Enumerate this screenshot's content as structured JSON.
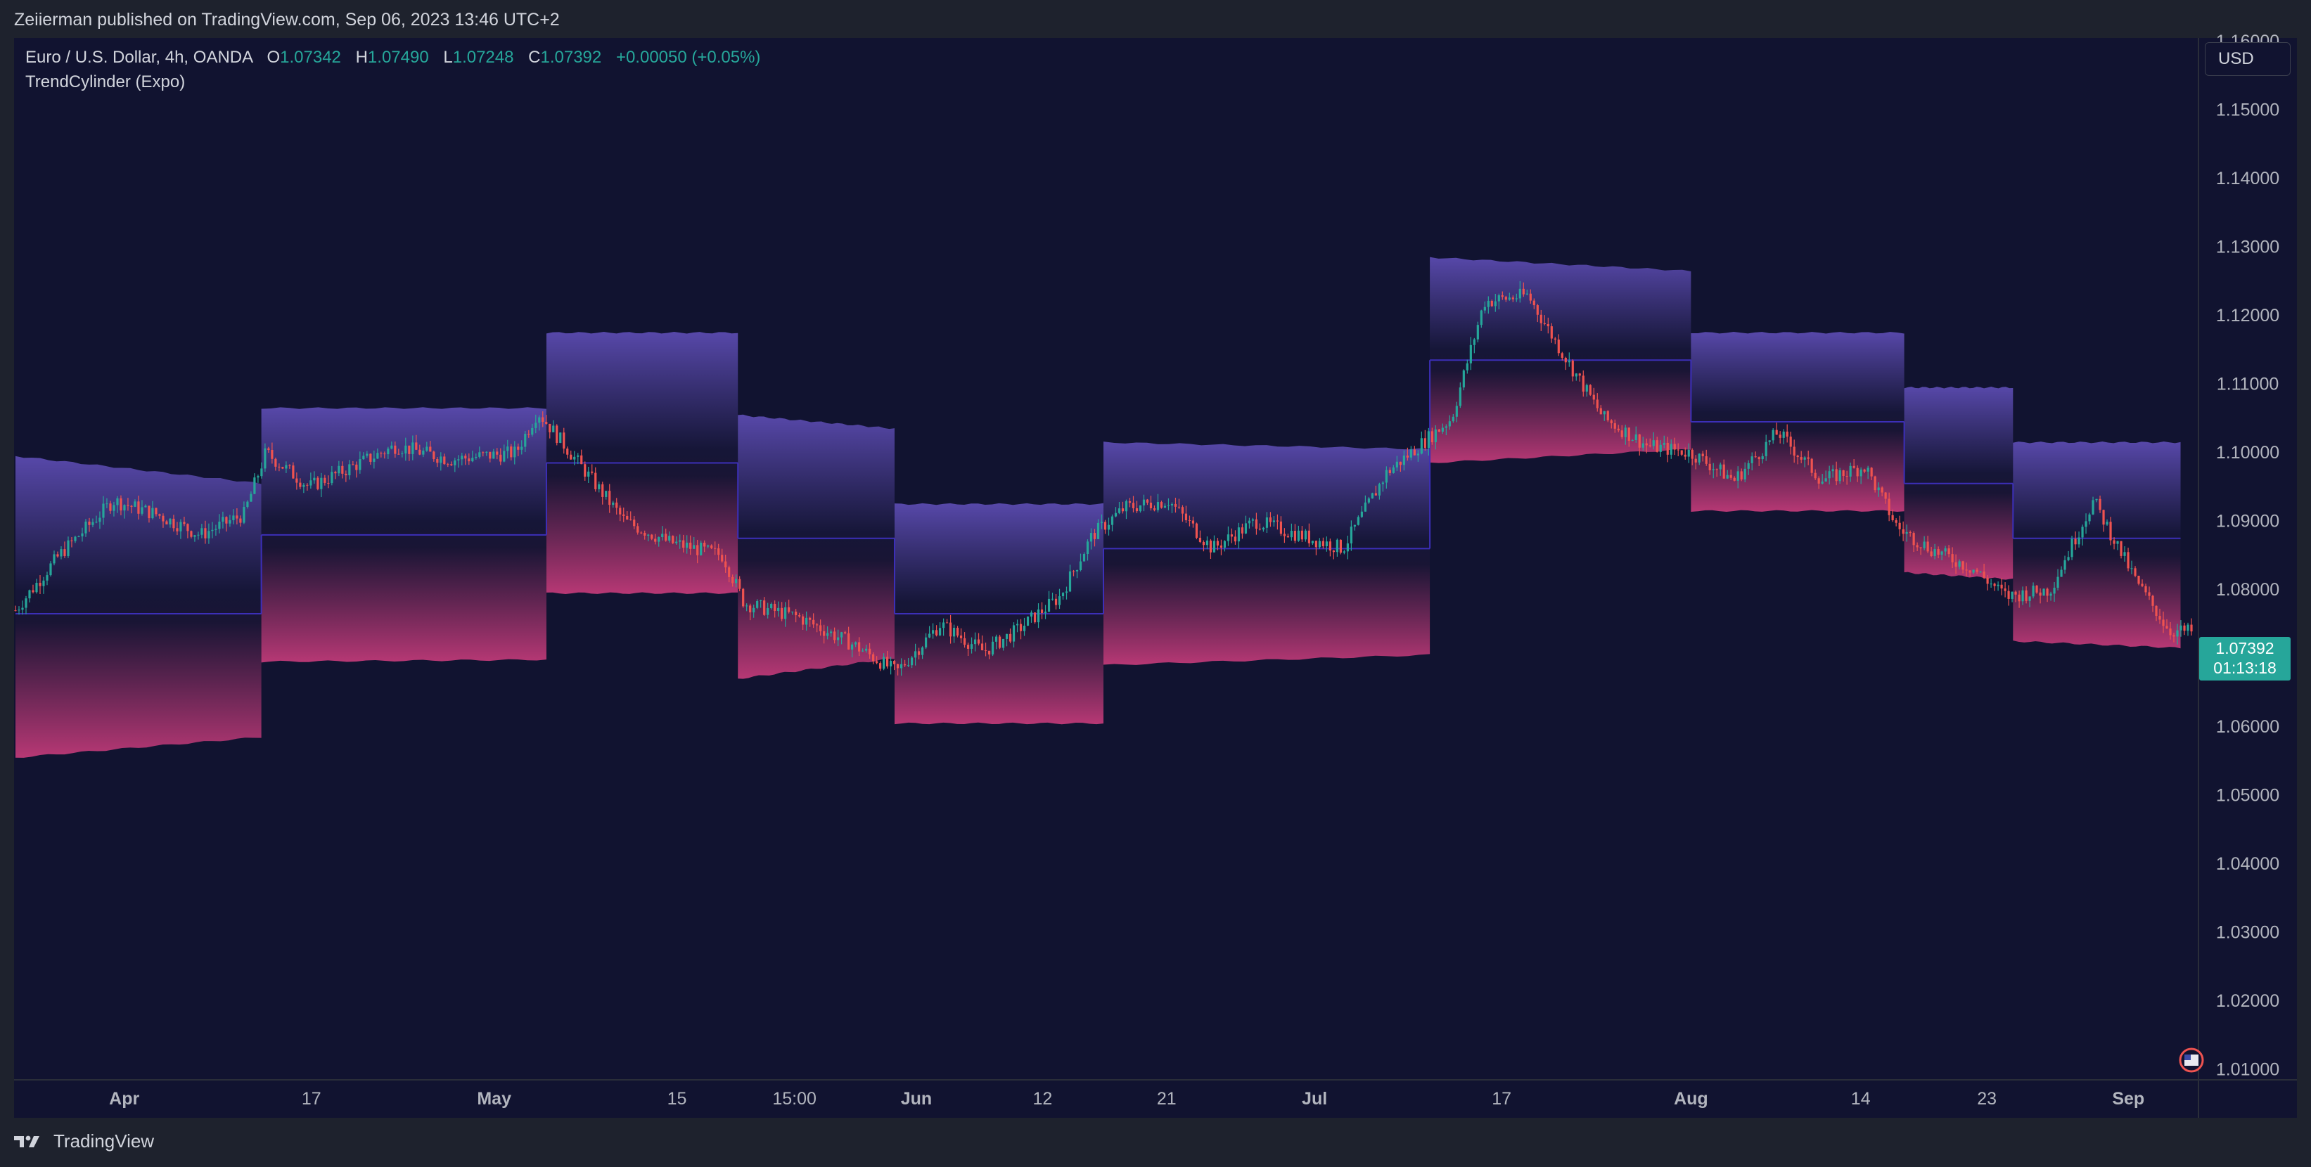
{
  "header": {
    "published": "Zeiierman published on TradingView.com, Sep 06, 2023 13:46 UTC+2"
  },
  "legend": {
    "symbol": "Euro / U.S. Dollar, 4h, OANDA",
    "open_label": "O",
    "open": "1.07342",
    "high_label": "H",
    "high": "1.07490",
    "low_label": "L",
    "low": "1.07248",
    "close_label": "C",
    "close": "1.07392",
    "change": "+0.00050 (+0.05%)",
    "indicator": "TrendCylinder (Expo)"
  },
  "currency_button": "USD",
  "price_badge": {
    "price": "1.07392",
    "countdown": "01:13:18"
  },
  "footer": {
    "brand": "TradingView"
  },
  "colors": {
    "background": "#111330",
    "up": "#26a69a",
    "down": "#ef5350",
    "band_top": "#5b4bb0",
    "band_bottom": "#c03a78",
    "midline": "#3c2fb8",
    "badge": "#26a69a"
  },
  "chart_data": {
    "type": "candlestick",
    "yaxis": {
      "ticks": [
        "1.16000",
        "1.15000",
        "1.14000",
        "1.13000",
        "1.12000",
        "1.11000",
        "1.10000",
        "1.09000",
        "1.08000",
        "1.07000",
        "1.06000",
        "1.05000",
        "1.04000",
        "1.03000",
        "1.02000",
        "1.01000"
      ],
      "ylim": [
        1.0085,
        1.1605
      ]
    },
    "xaxis": {
      "ticks": [
        {
          "label": "Apr",
          "t": 0.05,
          "bold": true
        },
        {
          "label": "17",
          "t": 0.136,
          "bold": false
        },
        {
          "label": "May",
          "t": 0.22,
          "bold": true
        },
        {
          "label": "15",
          "t": 0.304,
          "bold": false
        },
        {
          "label": "15:00",
          "t": 0.358,
          "bold": false
        },
        {
          "label": "Jun",
          "t": 0.414,
          "bold": true
        },
        {
          "label": "12",
          "t": 0.472,
          "bold": false
        },
        {
          "label": "21",
          "t": 0.529,
          "bold": false
        },
        {
          "label": "Jul",
          "t": 0.597,
          "bold": true
        },
        {
          "label": "17",
          "t": 0.683,
          "bold": false
        },
        {
          "label": "Aug",
          "t": 0.77,
          "bold": true
        },
        {
          "label": "14",
          "t": 0.848,
          "bold": false
        },
        {
          "label": "23",
          "t": 0.906,
          "bold": false
        },
        {
          "label": "Sep",
          "t": 0.971,
          "bold": true
        }
      ]
    },
    "price_path": [
      [
        0,
        1.077
      ],
      [
        0.02,
        1.085
      ],
      [
        0.045,
        1.093
      ],
      [
        0.065,
        1.091
      ],
      [
        0.085,
        1.088
      ],
      [
        0.105,
        1.091
      ],
      [
        0.115,
        1.1
      ],
      [
        0.135,
        1.095
      ],
      [
        0.155,
        1.098
      ],
      [
        0.175,
        1.101
      ],
      [
        0.2,
        1.099
      ],
      [
        0.23,
        1.1
      ],
      [
        0.24,
        1.106
      ],
      [
        0.26,
        1.098
      ],
      [
        0.28,
        1.09
      ],
      [
        0.3,
        1.087
      ],
      [
        0.325,
        1.085
      ],
      [
        0.335,
        1.078
      ],
      [
        0.36,
        1.076
      ],
      [
        0.385,
        1.072
      ],
      [
        0.405,
        1.068
      ],
      [
        0.425,
        1.075
      ],
      [
        0.445,
        1.071
      ],
      [
        0.46,
        1.074
      ],
      [
        0.48,
        1.079
      ],
      [
        0.495,
        1.088
      ],
      [
        0.51,
        1.092
      ],
      [
        0.53,
        1.093
      ],
      [
        0.55,
        1.086
      ],
      [
        0.57,
        1.09
      ],
      [
        0.59,
        1.088
      ],
      [
        0.61,
        1.086
      ],
      [
        0.63,
        1.097
      ],
      [
        0.66,
        1.105
      ],
      [
        0.675,
        1.122
      ],
      [
        0.695,
        1.123
      ],
      [
        0.71,
        1.115
      ],
      [
        0.73,
        1.105
      ],
      [
        0.75,
        1.101
      ],
      [
        0.77,
        1.1
      ],
      [
        0.79,
        1.096
      ],
      [
        0.81,
        1.103
      ],
      [
        0.83,
        1.096
      ],
      [
        0.85,
        1.098
      ],
      [
        0.865,
        1.089
      ],
      [
        0.88,
        1.086
      ],
      [
        0.9,
        1.083
      ],
      [
        0.915,
        1.079
      ],
      [
        0.935,
        1.08
      ],
      [
        0.955,
        1.093
      ],
      [
        0.975,
        1.081
      ],
      [
        0.99,
        1.074
      ],
      [
        1.0,
        1.0739
      ]
    ],
    "trend_cylinder_segments": [
      {
        "t0": 0.0,
        "t1": 0.113,
        "top0": 1.0995,
        "top1": 1.0955,
        "mid": 1.0765,
        "bot0": 1.0555,
        "bot1": 1.0585
      },
      {
        "t0": 0.113,
        "t1": 0.244,
        "top0": 1.1065,
        "top1": 1.1065,
        "mid": 1.088,
        "bot0": 1.0695,
        "bot1": 1.0698
      },
      {
        "t0": 0.244,
        "t1": 0.332,
        "top0": 1.1175,
        "top1": 1.1175,
        "mid": 1.0985,
        "bot0": 1.0795,
        "bot1": 1.0795
      },
      {
        "t0": 0.332,
        "t1": 0.404,
        "top0": 1.1055,
        "top1": 1.1035,
        "mid": 1.0875,
        "bot0": 1.067,
        "bot1": 1.07
      },
      {
        "t0": 0.404,
        "t1": 0.5,
        "top0": 1.0925,
        "top1": 1.0925,
        "mid": 1.0765,
        "bot0": 1.0605,
        "bot1": 1.0605
      },
      {
        "t0": 0.5,
        "t1": 0.65,
        "top0": 1.1015,
        "top1": 1.1005,
        "mid": 1.086,
        "bot0": 1.069,
        "bot1": 1.0705
      },
      {
        "t0": 0.65,
        "t1": 0.77,
        "top0": 1.1285,
        "top1": 1.1265,
        "mid": 1.1135,
        "bot0": 1.0985,
        "bot1": 1.1005
      },
      {
        "t0": 0.77,
        "t1": 0.868,
        "top0": 1.1175,
        "top1": 1.1175,
        "mid": 1.1045,
        "bot0": 1.0915,
        "bot1": 1.0915
      },
      {
        "t0": 0.868,
        "t1": 0.918,
        "top0": 1.1095,
        "top1": 1.1095,
        "mid": 1.0955,
        "bot0": 1.0825,
        "bot1": 1.0815
      },
      {
        "t0": 0.918,
        "t1": 0.995,
        "top0": 1.1015,
        "top1": 1.1015,
        "mid": 1.0875,
        "bot0": 1.0725,
        "bot1": 1.0715
      }
    ],
    "last_price": 1.07392
  }
}
